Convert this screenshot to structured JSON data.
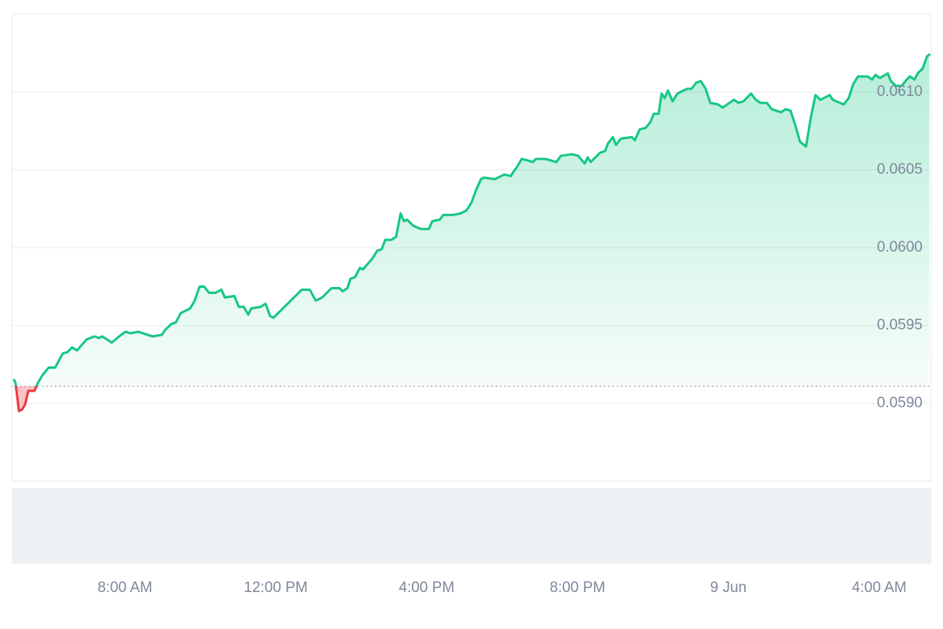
{
  "chart_data": {
    "type": "area",
    "x": [
      5.06,
      5.1,
      5.19,
      5.27,
      5.35,
      5.44,
      5.6,
      5.69,
      5.81,
      5.98,
      6.15,
      6.35,
      6.48,
      6.6,
      6.73,
      6.98,
      7.19,
      7.31,
      7.4,
      7.65,
      7.9,
      8.02,
      8.15,
      8.35,
      8.48,
      8.73,
      8.98,
      9.06,
      9.23,
      9.35,
      9.48,
      9.73,
      9.85,
      9.98,
      10.1,
      10.23,
      10.4,
      10.56,
      10.65,
      10.9,
      11.02,
      11.15,
      11.27,
      11.35,
      11.6,
      11.73,
      11.85,
      11.94,
      12.19,
      12.44,
      12.69,
      12.9,
      13.06,
      13.23,
      13.48,
      13.69,
      13.77,
      13.9,
      13.98,
      14.1,
      14.23,
      14.31,
      14.56,
      14.69,
      14.81,
      14.9,
      15.06,
      15.19,
      15.31,
      15.4,
      15.48,
      15.65,
      15.85,
      16.06,
      16.15,
      16.35,
      16.44,
      16.69,
      16.9,
      17.06,
      17.19,
      17.31,
      17.44,
      17.52,
      17.81,
      18.06,
      18.23,
      18.31,
      18.4,
      18.52,
      18.69,
      18.81,
      18.9,
      19.15,
      19.44,
      19.56,
      19.85,
      20.02,
      20.19,
      20.27,
      20.35,
      20.6,
      20.73,
      20.81,
      20.94,
      21.02,
      21.15,
      21.44,
      21.52,
      21.65,
      21.81,
      21.94,
      22.02,
      22.15,
      22.23,
      22.31,
      22.4,
      22.52,
      22.65,
      22.9,
      23.02,
      23.15,
      23.27,
      23.4,
      23.52,
      23.73,
      23.85,
      24.15,
      24.27,
      24.4,
      24.6,
      24.73,
      24.85,
      25.02,
      25.15,
      25.27,
      25.4,
      25.52,
      25.65,
      25.77,
      25.9,
      26.06,
      26.19,
      26.31,
      26.44,
      26.69,
      26.77,
      27.06,
      27.19,
      27.31,
      27.44,
      27.69,
      27.81,
      27.9,
      28.02,
      28.23,
      28.31,
      28.44,
      28.6,
      28.73,
      28.81,
      28.94,
      29.02,
      29.15,
      29.27,
      29.33
    ],
    "values": [
      0.05915,
      0.05913,
      0.05895,
      0.05896,
      0.05899,
      0.05908,
      0.05908,
      0.05913,
      0.05918,
      0.05923,
      0.05923,
      0.05932,
      0.05933,
      0.05936,
      0.05934,
      0.05941,
      0.05943,
      0.05942,
      0.05943,
      0.05939,
      0.05944,
      0.05946,
      0.05945,
      0.05946,
      0.05945,
      0.05943,
      0.05944,
      0.05947,
      0.05951,
      0.05952,
      0.05958,
      0.05961,
      0.05966,
      0.05975,
      0.05975,
      0.05971,
      0.05971,
      0.05973,
      0.05968,
      0.05969,
      0.05962,
      0.05962,
      0.05957,
      0.05961,
      0.05962,
      0.05964,
      0.05956,
      0.05955,
      0.05961,
      0.05967,
      0.05973,
      0.05973,
      0.05966,
      0.05968,
      0.05974,
      0.05974,
      0.05972,
      0.05974,
      0.0598,
      0.05981,
      0.05987,
      0.05986,
      0.05993,
      0.05998,
      0.05999,
      0.06005,
      0.06005,
      0.06007,
      0.06022,
      0.06017,
      0.06018,
      0.06014,
      0.06012,
      0.06012,
      0.06017,
      0.06018,
      0.06021,
      0.06021,
      0.06022,
      0.06024,
      0.06029,
      0.06037,
      0.06044,
      0.06045,
      0.06044,
      0.06047,
      0.06046,
      0.06049,
      0.06052,
      0.06057,
      0.06056,
      0.06055,
      0.06057,
      0.06057,
      0.06055,
      0.06059,
      0.0606,
      0.06059,
      0.06054,
      0.06058,
      0.06055,
      0.06061,
      0.06062,
      0.06067,
      0.06071,
      0.06066,
      0.0607,
      0.06071,
      0.06069,
      0.06076,
      0.06077,
      0.06081,
      0.06086,
      0.06086,
      0.06099,
      0.06096,
      0.06101,
      0.06094,
      0.06099,
      0.06102,
      0.06102,
      0.06106,
      0.06107,
      0.06102,
      0.06093,
      0.06092,
      0.0609,
      0.06095,
      0.06093,
      0.06094,
      0.06099,
      0.06095,
      0.06093,
      0.06093,
      0.06089,
      0.06088,
      0.06087,
      0.06089,
      0.06088,
      0.06079,
      0.06068,
      0.06065,
      0.06084,
      0.06098,
      0.06095,
      0.06098,
      0.06095,
      0.06092,
      0.06096,
      0.06105,
      0.0611,
      0.0611,
      0.06108,
      0.06111,
      0.06109,
      0.06112,
      0.06107,
      0.06104,
      0.06104,
      0.06108,
      0.0611,
      0.06108,
      0.06112,
      0.06115,
      0.06123,
      0.06124
    ],
    "color": "#16c784",
    "down_color": "#ea3943",
    "baseline": 0.05911,
    "xlim": [
      5,
      29.4
    ],
    "ylim": [
      0.0585,
      0.0615
    ],
    "xticks": [
      {
        "value": 8,
        "label": "8:00 AM"
      },
      {
        "value": 12,
        "label": "12:00 PM"
      },
      {
        "value": 16,
        "label": "4:00 PM"
      },
      {
        "value": 20,
        "label": "8:00 PM"
      },
      {
        "value": 24,
        "label": "9 Jun"
      },
      {
        "value": 28,
        "label": "4:00 AM"
      }
    ],
    "yticks": [
      {
        "value": 0.059,
        "label": "0.0590"
      },
      {
        "value": 0.0595,
        "label": "0.0595"
      },
      {
        "value": 0.06,
        "label": "0.0600"
      },
      {
        "value": 0.0605,
        "label": "0.0605"
      },
      {
        "value": 0.061,
        "label": "0.0610"
      }
    ],
    "grid": true
  }
}
